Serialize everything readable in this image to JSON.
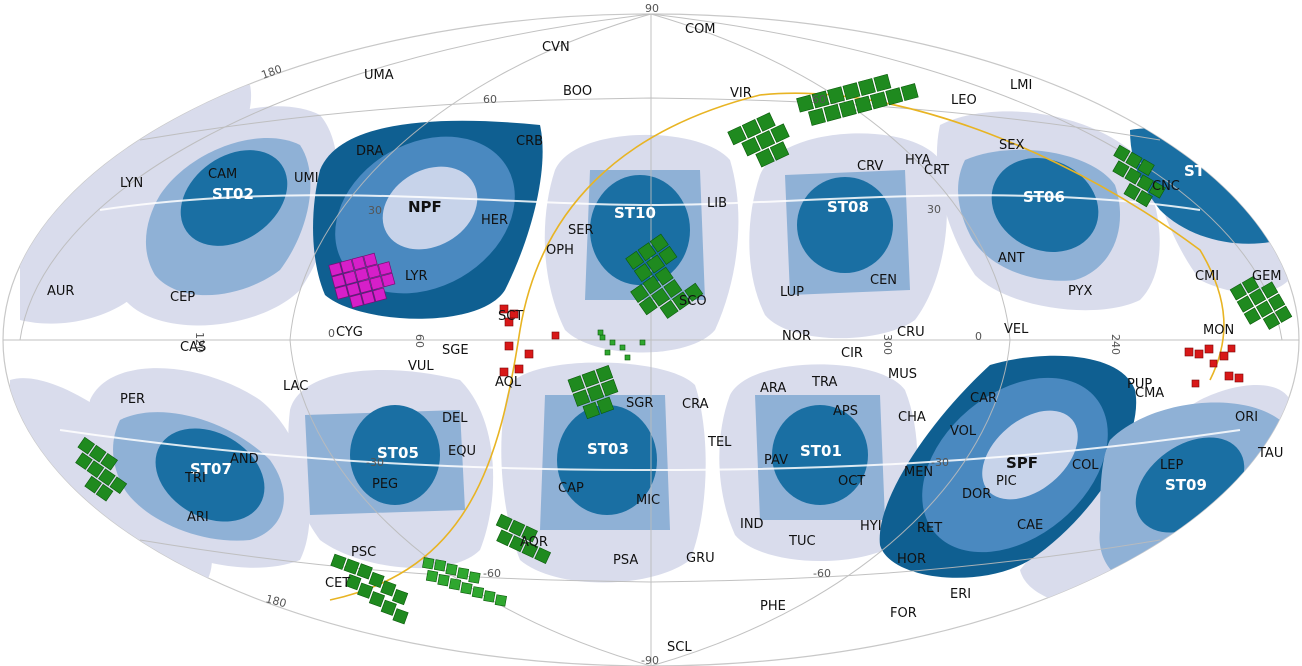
{
  "map": {
    "fields": [
      {
        "id": "st01",
        "label": "ST01"
      },
      {
        "id": "st02",
        "label": "ST02"
      },
      {
        "id": "st03",
        "label": "ST03"
      },
      {
        "id": "st05",
        "label": "ST05"
      },
      {
        "id": "st06",
        "label": "ST06"
      },
      {
        "id": "st07",
        "label": "ST07"
      },
      {
        "id": "st08",
        "label": "ST08"
      },
      {
        "id": "st09",
        "label": "ST09"
      },
      {
        "id": "st10",
        "label": "ST10"
      },
      {
        "id": "st_edge",
        "label": "ST"
      },
      {
        "id": "npf",
        "label": "NPF"
      },
      {
        "id": "spf",
        "label": "SPF"
      }
    ],
    "grid_labels": [
      "90",
      "60",
      "30",
      "0",
      "-30",
      "-60",
      "-90",
      "180",
      "120",
      "60",
      "0",
      "300",
      "0",
      "240",
      "180",
      "30",
      "30",
      "60",
      "-30",
      "-60"
    ],
    "constellations": [
      "COM",
      "CVN",
      "UMA",
      "BOO",
      "VIR",
      "LMI",
      "LEO",
      "CRB",
      "DRA",
      "CAM",
      "UMI",
      "LYN",
      "HER",
      "SER",
      "OPH",
      "LIB",
      "CRV",
      "HYA",
      "CRT",
      "SEX",
      "CNC",
      "AUR",
      "CEP",
      "LYR",
      "CYG",
      "SCT",
      "SCO",
      "LUP",
      "CEN",
      "ANT",
      "PYX",
      "CMI",
      "GEM",
      "MON",
      "CAS",
      "SGE",
      "VUL",
      "AQL",
      "NOR",
      "CIR",
      "CRU",
      "VEL",
      "LAC",
      "PER",
      "DEL",
      "EQU",
      "AND",
      "TRI",
      "ARI",
      "PEG",
      "SGR",
      "CRA",
      "ARA",
      "TRA",
      "APS",
      "MUS",
      "CHA",
      "CAR",
      "PUP",
      "CMA",
      "ORI",
      "TAU",
      "VOL",
      "LEP",
      "TEL",
      "PAV",
      "OCT",
      "MEN",
      "PIC",
      "COL",
      "DOR",
      "CAP",
      "MIC",
      "IND",
      "TUC",
      "HYI",
      "RET",
      "CAE",
      "HOR",
      "AQR",
      "PSC",
      "CET",
      "PSA",
      "GRU",
      "ERI",
      "PHE",
      "FOR",
      "SCL"
    ]
  }
}
